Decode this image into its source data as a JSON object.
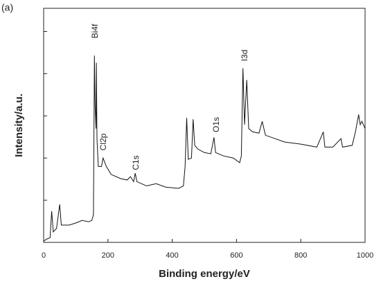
{
  "chart_data": {
    "type": "line",
    "title": "(a)",
    "x_label": "Binding energy/eV",
    "y_label": "Intensity/a.u.",
    "xlim": [
      0,
      1000
    ],
    "xticks": [
      0,
      200,
      400,
      600,
      800,
      1000
    ],
    "ylim": [
      0,
      5.55
    ],
    "yticks": [
      0,
      1,
      2,
      3,
      4,
      5
    ],
    "annotations": [
      "Bi4f",
      "Cl2p",
      "C1s",
      "O1s",
      "I3d"
    ],
    "series": [
      {
        "name": "spectrum",
        "color": "#111111",
        "x": [
          0,
          10,
          20,
          25,
          30,
          40,
          50,
          55,
          80,
          100,
          120,
          140,
          150,
          155,
          158,
          160,
          163,
          164,
          166,
          170,
          180,
          185,
          195,
          210,
          240,
          260,
          270,
          280,
          285,
          290,
          320,
          350,
          380,
          420,
          435,
          440,
          445,
          450,
          460,
          465,
          470,
          480,
          500,
          520,
          530,
          535,
          560,
          590,
          610,
          615,
          620,
          625,
          632,
          638,
          650,
          670,
          680,
          690,
          720,
          750,
          800,
          850,
          870,
          875,
          900,
          925,
          930,
          960,
          970,
          980,
          985,
          990,
          1000
        ],
        "values": [
          0.03,
          0.08,
          0.11,
          0.74,
          0.25,
          0.33,
          0.9,
          0.41,
          0.41,
          0.46,
          0.52,
          0.49,
          0.52,
          0.66,
          4.43,
          3.28,
          2.7,
          4.26,
          2.46,
          1.8,
          1.8,
          2.0,
          1.8,
          1.61,
          1.51,
          1.48,
          1.56,
          1.44,
          1.64,
          1.44,
          1.34,
          1.39,
          1.31,
          1.28,
          1.34,
          1.8,
          2.95,
          1.97,
          2.0,
          2.92,
          2.3,
          2.21,
          2.13,
          2.1,
          2.49,
          2.13,
          2.05,
          2.0,
          1.89,
          2.05,
          4.13,
          2.79,
          3.85,
          2.7,
          2.62,
          2.59,
          2.87,
          2.54,
          2.46,
          2.38,
          2.33,
          2.26,
          2.62,
          2.26,
          2.26,
          2.46,
          2.26,
          2.3,
          2.62,
          3.03,
          2.79,
          2.87,
          2.7
        ]
      }
    ]
  }
}
